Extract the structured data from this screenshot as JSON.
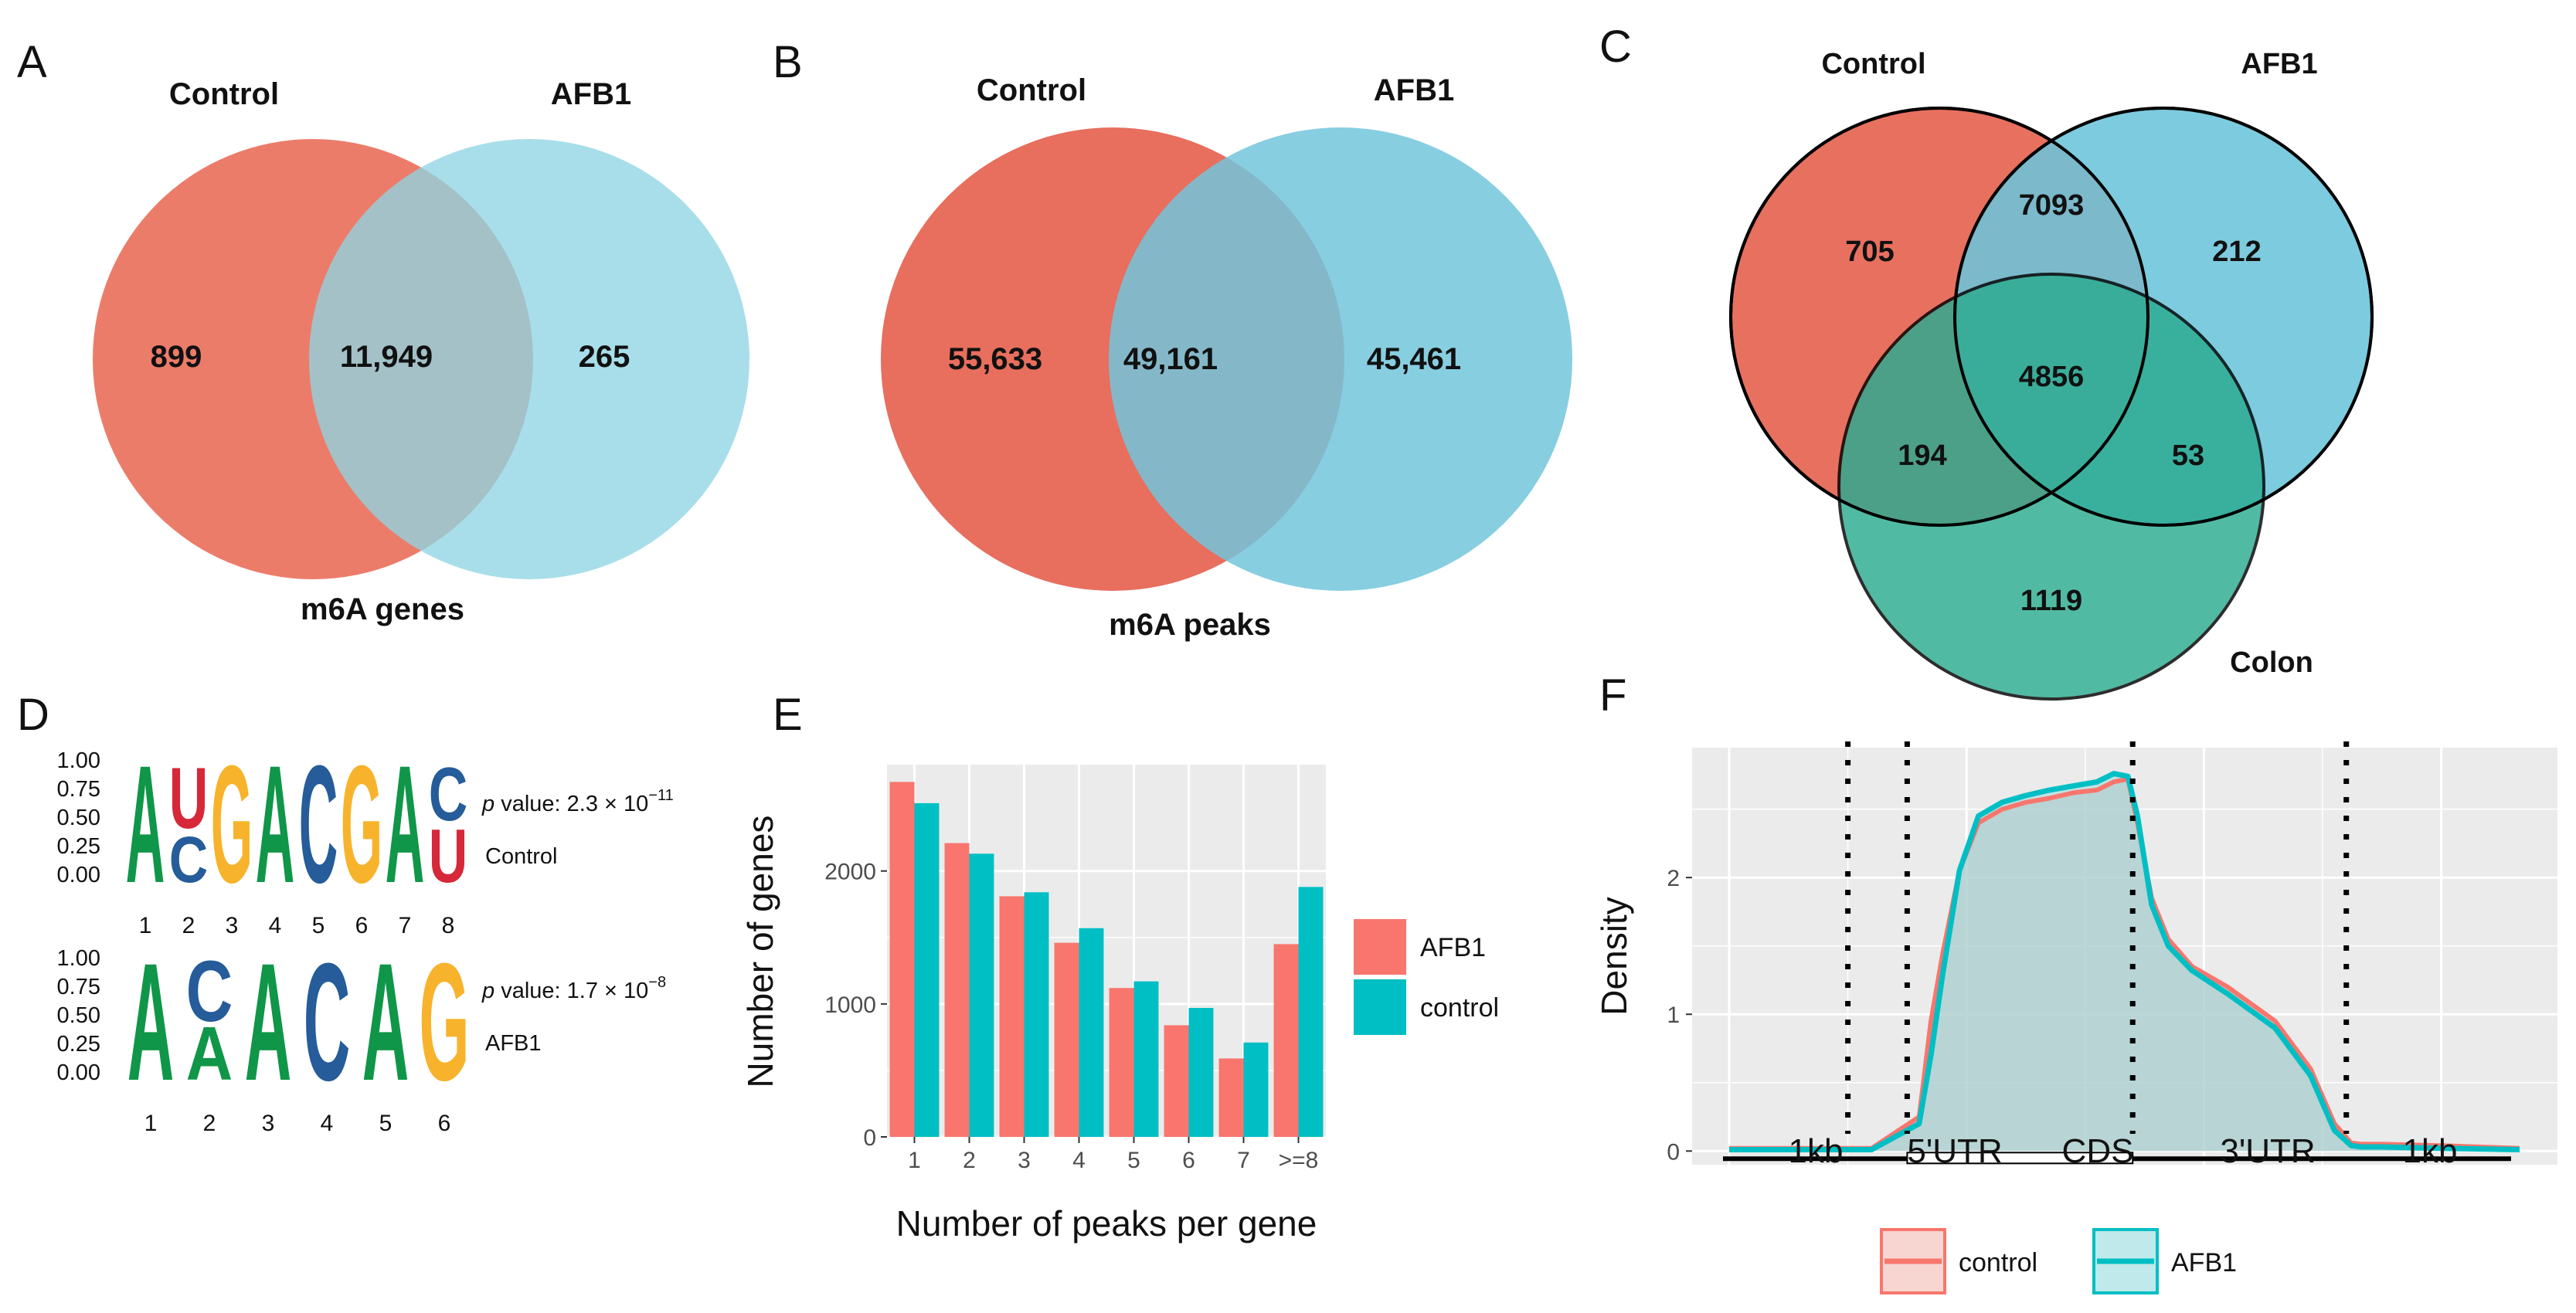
{
  "panels": {
    "a": {
      "letter": "A",
      "set1": "Control",
      "set2": "AFB1",
      "only1": "899",
      "both": "11,949",
      "only2": "265",
      "caption": "m6A genes",
      "color1": "#ec7c6a",
      "color2": "#8fd5e3"
    },
    "b": {
      "letter": "B",
      "set1": "Control",
      "set2": "AFB1",
      "only1": "55,633",
      "both": "49,161",
      "only2": "45,461",
      "caption": "m6A peaks",
      "color1": "#e86e5e",
      "color2": "#72c6dc"
    },
    "c": {
      "letter": "C",
      "set1": "Control",
      "set2": "AFB1",
      "set3": "Colon",
      "only1": "705",
      "only2": "212",
      "r12": "7093",
      "all": "4856",
      "r13": "194",
      "r23": "53",
      "only3": "1119",
      "color1": "#e8705f",
      "color2": "#6cc4da",
      "color3": "#2bab90"
    },
    "d": {
      "letter": "D",
      "motifs": [
        {
          "name": "Control",
          "p_prefix": "p",
          "p_text": " value: 2.3 × 10",
          "p_exp": "−11",
          "yticks": [
            "1.00",
            "0.75",
            "0.50",
            "0.25",
            "0.00"
          ],
          "positions": [
            "1",
            "2",
            "3",
            "4",
            "5",
            "6",
            "7",
            "8"
          ]
        },
        {
          "name": "AFB1",
          "p_prefix": "p",
          "p_text": " value: 1.7 × 10",
          "p_exp": "−8",
          "yticks": [
            "1.00",
            "0.75",
            "0.50",
            "0.25",
            "0.00"
          ],
          "positions": [
            "1",
            "2",
            "3",
            "4",
            "5",
            "6"
          ]
        }
      ]
    },
    "e": {
      "letter": "E"
    },
    "f": {
      "letter": "F"
    }
  },
  "chart_data": [
    {
      "type": "bar",
      "panel": "E",
      "title": "",
      "xlabel": "Number of peaks per gene",
      "ylabel": "Number of genes",
      "categories": [
        "1",
        "2",
        "3",
        "4",
        "5",
        "6",
        "7",
        ">=8"
      ],
      "series": [
        {
          "name": "AFB1",
          "color": "#f8766d",
          "values": [
            2670,
            2210,
            1810,
            1460,
            1120,
            840,
            590,
            1450
          ]
        },
        {
          "name": "control",
          "color": "#00bfc4",
          "values": [
            2510,
            2130,
            1840,
            1570,
            1170,
            970,
            710,
            1880
          ]
        }
      ],
      "yticks": [
        0,
        1000,
        2000
      ],
      "ylim": [
        0,
        2800
      ],
      "grid": true,
      "legend_position": "right"
    },
    {
      "type": "area",
      "panel": "F",
      "title": "",
      "xlabel": "",
      "ylabel": "Density",
      "xlim": [
        0,
        5
      ],
      "ylim": [
        -0.1,
        2.95
      ],
      "yticks": [
        0,
        1,
        2
      ],
      "regions": [
        "1kb",
        "5'UTR",
        "CDS",
        "3'UTR",
        "1kb"
      ],
      "boundaries": [
        0.5,
        0.75,
        1.7,
        2.6
      ],
      "x": [
        0.0,
        0.3,
        0.6,
        0.8,
        0.85,
        0.9,
        0.97,
        1.05,
        1.15,
        1.25,
        1.35,
        1.45,
        1.55,
        1.62,
        1.68,
        1.72,
        1.78,
        1.85,
        1.95,
        2.1,
        2.3,
        2.45,
        2.55,
        2.62,
        2.66,
        2.75,
        3.0,
        3.33
      ],
      "series": [
        {
          "name": "control",
          "color": "#f8766d",
          "values": [
            0.02,
            0.02,
            0.02,
            0.25,
            0.95,
            1.45,
            2.05,
            2.4,
            2.5,
            2.55,
            2.58,
            2.62,
            2.64,
            2.7,
            2.72,
            2.4,
            1.85,
            1.55,
            1.35,
            1.2,
            0.95,
            0.6,
            0.2,
            0.06,
            0.05,
            0.05,
            0.04,
            0.02
          ]
        },
        {
          "name": "AFB1",
          "color": "#00bfc4",
          "values": [
            0.01,
            0.01,
            0.01,
            0.2,
            0.7,
            1.3,
            2.05,
            2.45,
            2.55,
            2.6,
            2.64,
            2.67,
            2.7,
            2.76,
            2.74,
            2.45,
            1.8,
            1.5,
            1.32,
            1.15,
            0.9,
            0.55,
            0.15,
            0.04,
            0.03,
            0.03,
            0.02,
            0.01
          ]
        }
      ],
      "grid": true,
      "legend_position": "bottom"
    }
  ]
}
